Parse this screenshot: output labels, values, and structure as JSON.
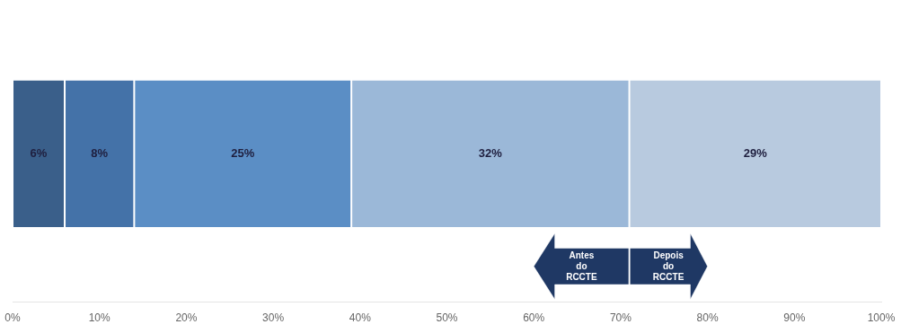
{
  "chart_data": {
    "type": "bar",
    "orientation": "horizontal",
    "stacked": true,
    "categories": [
      null
    ],
    "series": [
      {
        "color": "#3A5F8A",
        "values": [
          6
        ],
        "value_labels": [
          "6%"
        ]
      },
      {
        "color": "#4472A8",
        "values": [
          8
        ],
        "value_labels": [
          "8%"
        ]
      },
      {
        "color": "#5B8EC5",
        "values": [
          25
        ],
        "value_labels": [
          "25%"
        ]
      },
      {
        "color": "#9BB8D8",
        "values": [
          32
        ],
        "value_labels": [
          "32%"
        ]
      },
      {
        "color": "#B8CADF",
        "values": [
          29
        ],
        "value_labels": [
          "29%"
        ]
      }
    ],
    "data_labels": true,
    "data_label_color": "#1F1F3F",
    "xlim": [
      0,
      100
    ],
    "xticks": [
      {
        "value": 0,
        "label": "0%"
      },
      {
        "value": 10,
        "label": "10%"
      },
      {
        "value": 20,
        "label": "20%"
      },
      {
        "value": 30,
        "label": "30%"
      },
      {
        "value": 40,
        "label": "40%"
      },
      {
        "value": 50,
        "label": "50%"
      },
      {
        "value": 60,
        "label": "60%"
      },
      {
        "value": 70,
        "label": "70%"
      },
      {
        "value": 80,
        "label": "80%"
      },
      {
        "value": 90,
        "label": "90%"
      },
      {
        "value": 100,
        "label": "100%"
      }
    ],
    "tick_labels": "x",
    "grid": false,
    "annotations": [
      {
        "text": "Antes\ndo\nRCCTE",
        "from": 71,
        "to": 60,
        "color": "#1F3864",
        "text_color": "#FFFFFF"
      },
      {
        "text": "Depois\ndo\nRCCTE",
        "from": 71,
        "to": 80,
        "color": "#1F3864",
        "text_color": "#FFFFFF"
      }
    ]
  }
}
